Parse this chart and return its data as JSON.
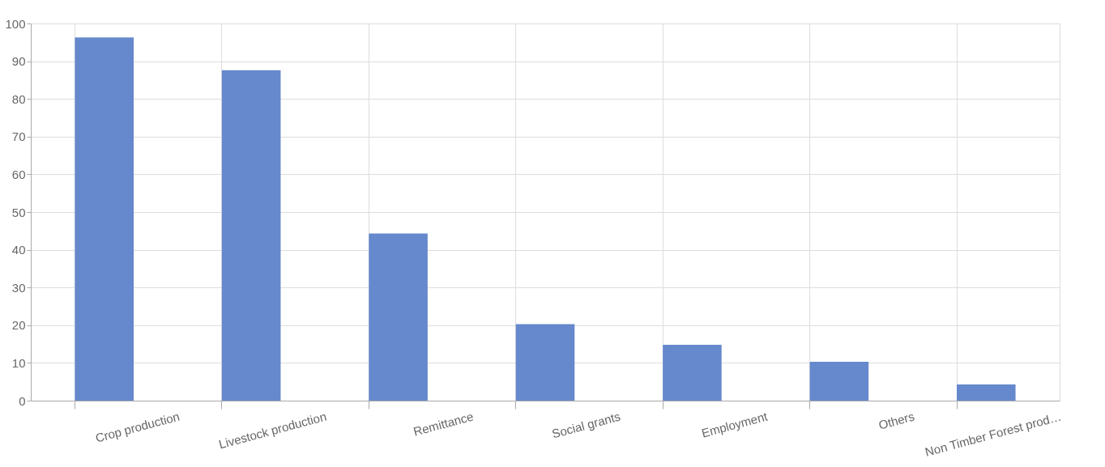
{
  "chart_data": {
    "type": "bar",
    "categories": [
      "Crop production",
      "Livestock production",
      "Remittance",
      "Social grants",
      "Employment",
      "Others",
      "Non Timber Forest prod…"
    ],
    "values": [
      96.3,
      87.6,
      44.3,
      20.3,
      14.8,
      10.3,
      4.3
    ],
    "color": "#6688cc",
    "ylim": [
      0,
      100
    ],
    "yticks": [
      0,
      10,
      20,
      30,
      40,
      50,
      60,
      70,
      80,
      90,
      100
    ],
    "grid": true
  }
}
